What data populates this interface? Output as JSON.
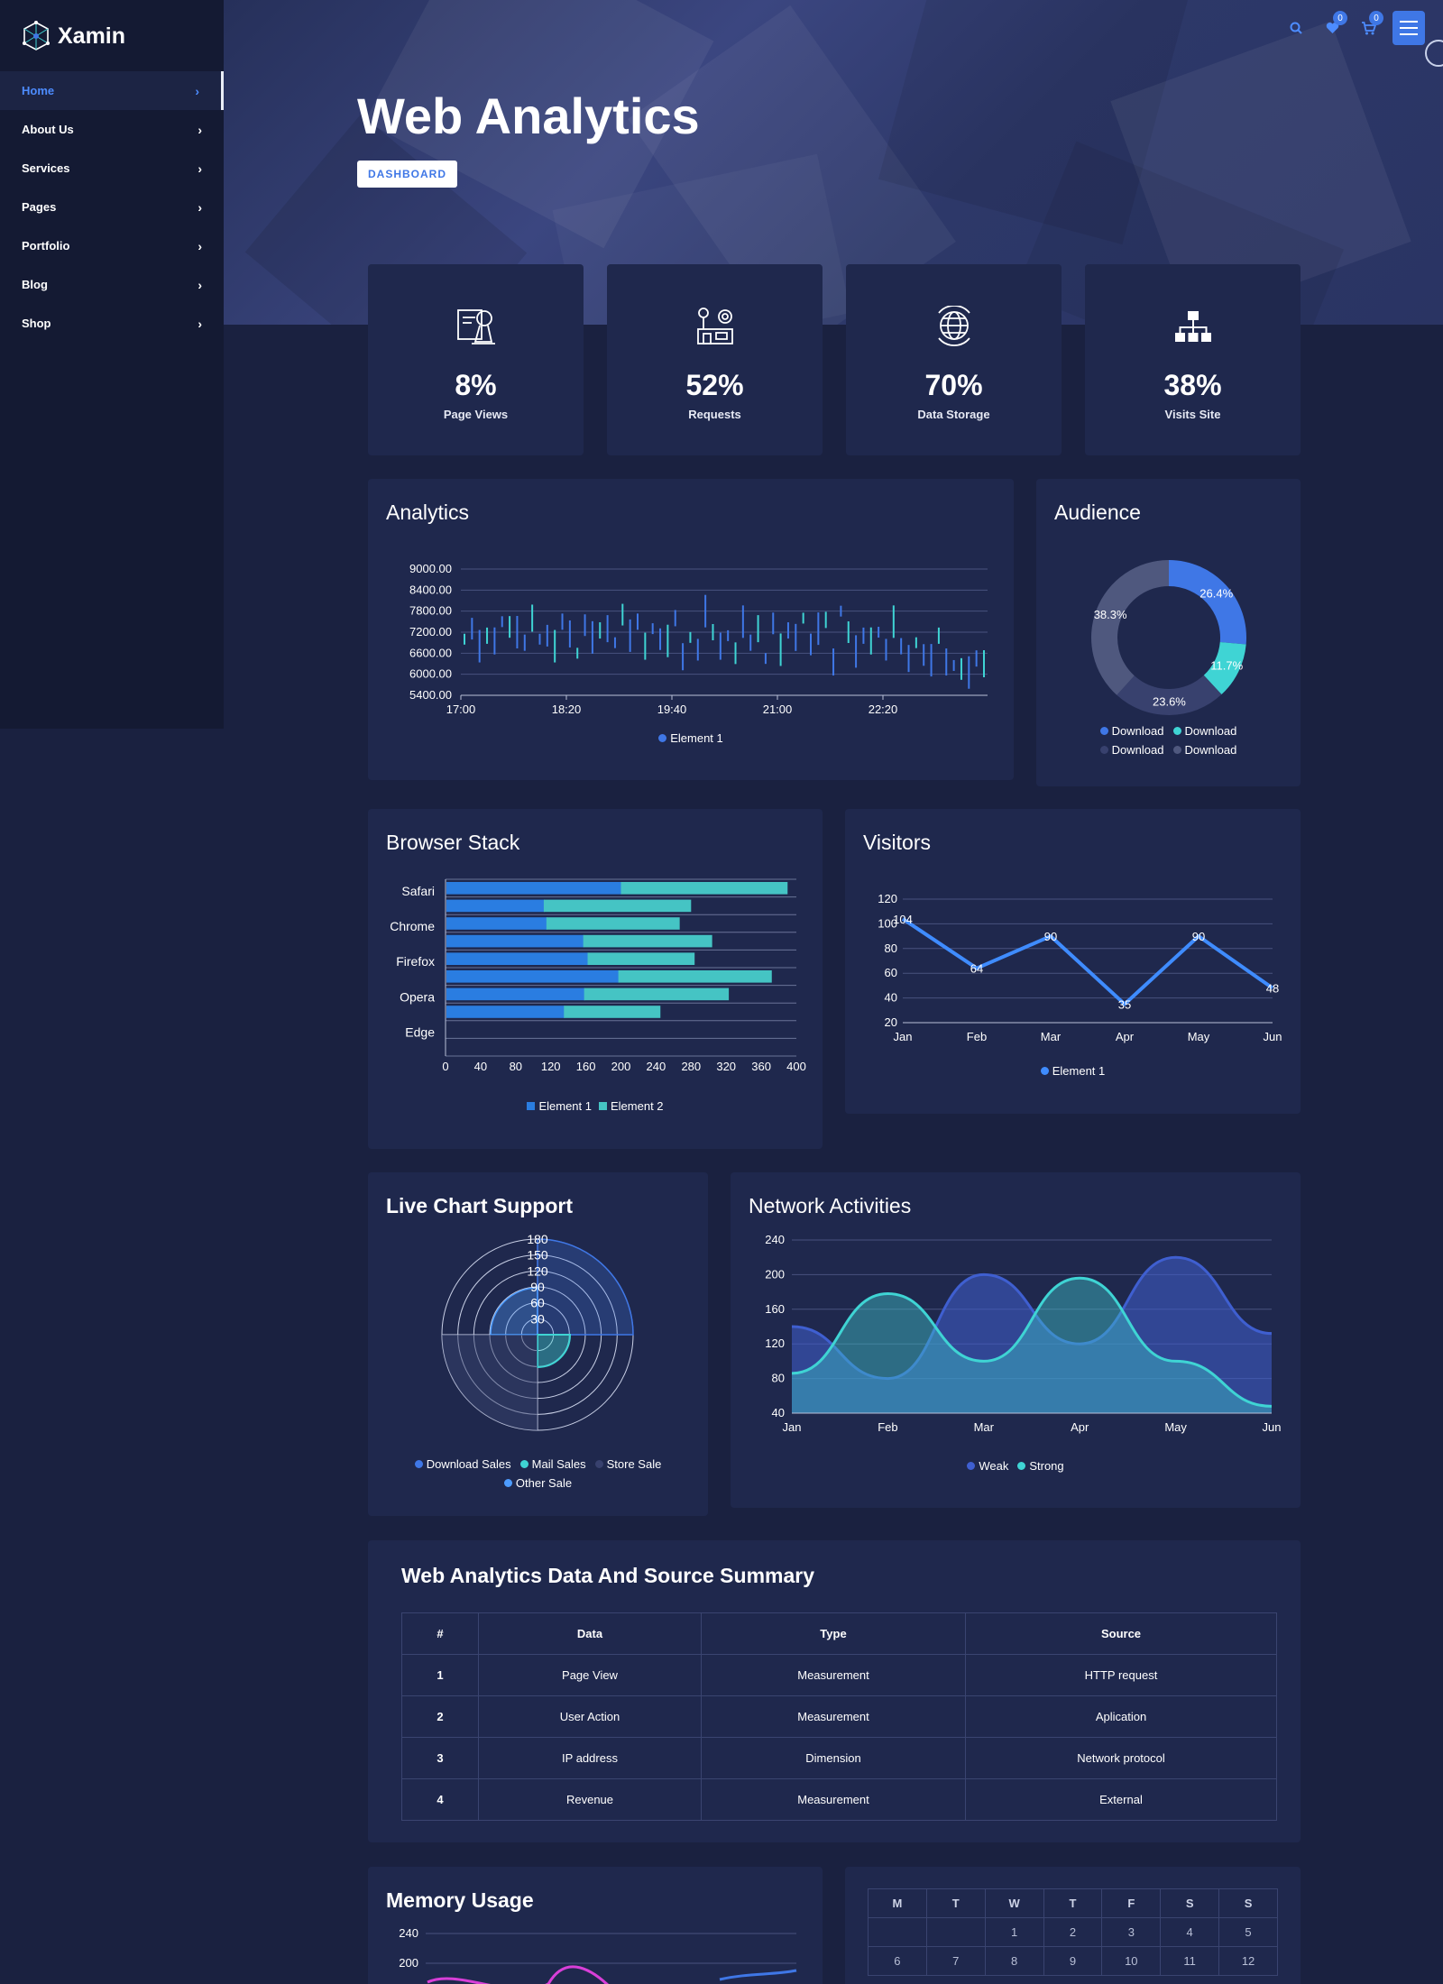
{
  "brand": {
    "name": "Xamin"
  },
  "sidebar": {
    "items": [
      {
        "label": "Home",
        "active": true
      },
      {
        "label": "About Us"
      },
      {
        "label": "Services"
      },
      {
        "label": "Pages"
      },
      {
        "label": "Portfolio"
      },
      {
        "label": "Blog"
      },
      {
        "label": "Shop"
      }
    ]
  },
  "topbar": {
    "wishlist_count": "0",
    "cart_count": "0",
    "icons": [
      "search-icon",
      "heart-icon",
      "cart-icon",
      "menu-icon"
    ]
  },
  "hero": {
    "title": "Web Analytics",
    "breadcrumb": "DASHBOARD"
  },
  "stats": [
    {
      "value": "8%",
      "label": "Page Views",
      "icon": "certificate-icon"
    },
    {
      "value": "52%",
      "label": "Requests",
      "icon": "tools-icon"
    },
    {
      "value": "70%",
      "label": "Data Storage",
      "icon": "globe-icon"
    },
    {
      "value": "38%",
      "label": "Visits Site",
      "icon": "sitemap-icon"
    }
  ],
  "cards": {
    "analytics": "Analytics",
    "audience": "Audience",
    "browser": "Browser Stack",
    "visitors": "Visitors",
    "live": "Live Chart Support",
    "network": "Network Activities",
    "summary": "Web Analytics Data And Source Summary",
    "memory": "Memory Usage"
  },
  "chart_data": [
    {
      "id": "analytics",
      "type": "candlestick",
      "xlabels": [
        "17:00",
        "18:20",
        "19:40",
        "21:00",
        "22:20"
      ],
      "ylabels": [
        "9000.00",
        "8400.00",
        "7800.00",
        "7200.00",
        "6600.00",
        "6000.00",
        "5400.00"
      ],
      "ylim": [
        5400,
        9000
      ],
      "legend": [
        "Element 1"
      ],
      "values": [
        7000,
        7300,
        6800,
        7100,
        6950,
        7500,
        7350,
        7200,
        6900,
        7600,
        7000,
        7100,
        6800,
        7500,
        7150,
        6600,
        7400,
        7050,
        7250,
        7300,
        6900,
        7700,
        7100,
        7500,
        6800,
        7300,
        7000,
        6950,
        7600,
        6500,
        7050,
        6700,
        7800,
        7200,
        6800,
        7100,
        6600,
        7500,
        6900,
        7300,
        6450,
        7450,
        6700,
        7250,
        7050,
        7600,
        6850,
        7300,
        7550,
        6350,
        7800,
        7200,
        6650,
        7100,
        6950,
        7200,
        6700,
        7500,
        6800,
        6450,
        6900,
        6550,
        6400,
        7100,
        6350,
        6250,
        6150,
        6050,
        6450,
        6300
      ]
    },
    {
      "id": "audience",
      "type": "pie",
      "values": [
        26.4,
        11.7,
        23.6,
        38.3
      ],
      "labels": [
        "26.4%",
        "11.7%",
        "23.6%",
        "38.3%"
      ],
      "colors": [
        "#3f77e6",
        "#3fd4d4",
        "#38416e",
        "#4f587e"
      ],
      "legend": [
        "Download",
        "Download",
        "Download",
        "Download"
      ]
    },
    {
      "id": "browser",
      "type": "bar",
      "categories": [
        "Safari",
        "",
        "Chrome",
        "",
        "Firefox",
        "",
        "Opera",
        "",
        "Edge",
        ""
      ],
      "series": [
        {
          "name": "Element 1",
          "values": [
            200,
            112,
            115,
            157,
            162,
            197,
            158,
            135,
            0,
            0
          ]
        },
        {
          "name": "Element 2",
          "values": [
            190,
            168,
            152,
            147,
            122,
            175,
            165,
            110,
            0,
            0
          ]
        }
      ],
      "xticks": [
        "0",
        "40",
        "80",
        "120",
        "160",
        "200",
        "240",
        "280",
        "320",
        "360",
        "400"
      ],
      "xlim": [
        0,
        400
      ],
      "legend": [
        "Element 1",
        "Element 2"
      ]
    },
    {
      "id": "visitors",
      "type": "line",
      "categories": [
        "Jan",
        "Feb",
        "Mar",
        "Apr",
        "May",
        "Jun"
      ],
      "values": [
        104,
        64,
        90,
        35,
        90,
        48
      ],
      "data_labels": [
        "104",
        "64",
        "90",
        "35",
        "90",
        "48"
      ],
      "yticks": [
        "120",
        "100",
        "80",
        "60",
        "40",
        "20"
      ],
      "ylim": [
        20,
        120
      ],
      "legend": [
        "Element 1"
      ]
    },
    {
      "id": "live",
      "type": "radar",
      "ticks": [
        "180",
        "150",
        "120",
        "90",
        "60",
        "30"
      ],
      "legend": [
        "Download Sales",
        "Mail Sales",
        "Store Sale",
        "Other Sale"
      ]
    },
    {
      "id": "network",
      "type": "area",
      "categories": [
        "Jan",
        "Feb",
        "Mar",
        "Apr",
        "May",
        "Jun"
      ],
      "series": [
        {
          "name": "Weak",
          "values": [
            140,
            80,
            200,
            120,
            220,
            132
          ]
        },
        {
          "name": "Strong",
          "values": [
            86,
            178,
            100,
            196,
            100,
            48
          ]
        }
      ],
      "yticks": [
        "240",
        "200",
        "160",
        "120",
        "80",
        "40"
      ],
      "ylim": [
        40,
        240
      ],
      "legend": [
        "Weak",
        "Strong"
      ]
    },
    {
      "id": "memory",
      "type": "line",
      "yticks": [
        "240",
        "200"
      ],
      "ylim": [
        40,
        240
      ]
    }
  ],
  "table": {
    "headers": [
      "#",
      "Data",
      "Type",
      "Source"
    ],
    "rows": [
      [
        "1",
        "Page View",
        "Measurement",
        "HTTP request"
      ],
      [
        "2",
        "User Action",
        "Measurement",
        "Aplication"
      ],
      [
        "3",
        "IP address",
        "Dimension",
        "Network protocol"
      ],
      [
        "4",
        "Revenue",
        "Measurement",
        "External"
      ]
    ]
  },
  "calendar": {
    "days": [
      "M",
      "T",
      "W",
      "T",
      "F",
      "S",
      "S"
    ],
    "rows": [
      [
        "",
        "",
        "1",
        "2",
        "3",
        "4",
        "5"
      ],
      [
        "6",
        "7",
        "8",
        "9",
        "10",
        "11",
        "12"
      ]
    ]
  },
  "colors": {
    "bg": "#1a2140",
    "card": "#1f284d",
    "accent": "#3f77e6",
    "teal": "#3fd4d4"
  }
}
